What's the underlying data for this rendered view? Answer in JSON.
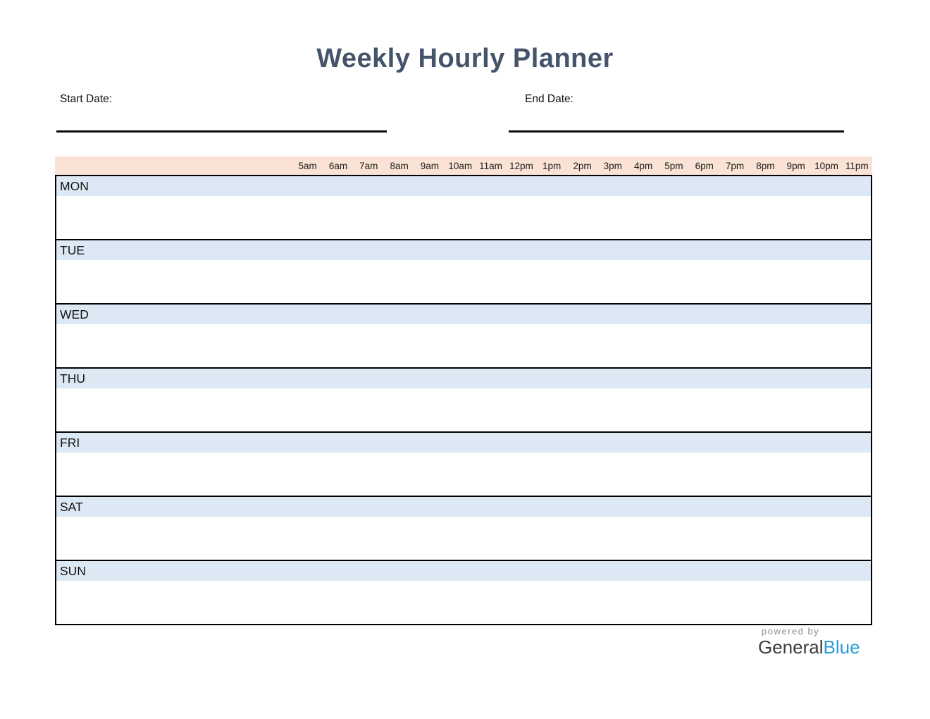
{
  "page": {
    "title": "Weekly Hourly Planner",
    "start_date_label": "Start Date:",
    "end_date_label": "End Date:"
  },
  "planner": {
    "times": [
      "5am",
      "6am",
      "7am",
      "8am",
      "9am",
      "10am",
      "11am",
      "12pm",
      "1pm",
      "2pm",
      "3pm",
      "4pm",
      "5pm",
      "6pm",
      "7pm",
      "8pm",
      "9pm",
      "10pm",
      "11pm"
    ],
    "days": [
      "MON",
      "TUE",
      "WED",
      "THU",
      "FRI",
      "SAT",
      "SUN"
    ]
  },
  "colors": {
    "title_text": "#44546A",
    "time_header_bg": "#FAE3D5",
    "day_label_bg": "#DCE9F5",
    "table_border": "#000000",
    "logo_general": "#3C3C3C",
    "logo_blue": "#2B9CD8",
    "powered_by_gray": "#8C8C8C"
  },
  "footer": {
    "powered_by": "powered by",
    "brand_general": "General",
    "brand_blue": "Blue"
  }
}
